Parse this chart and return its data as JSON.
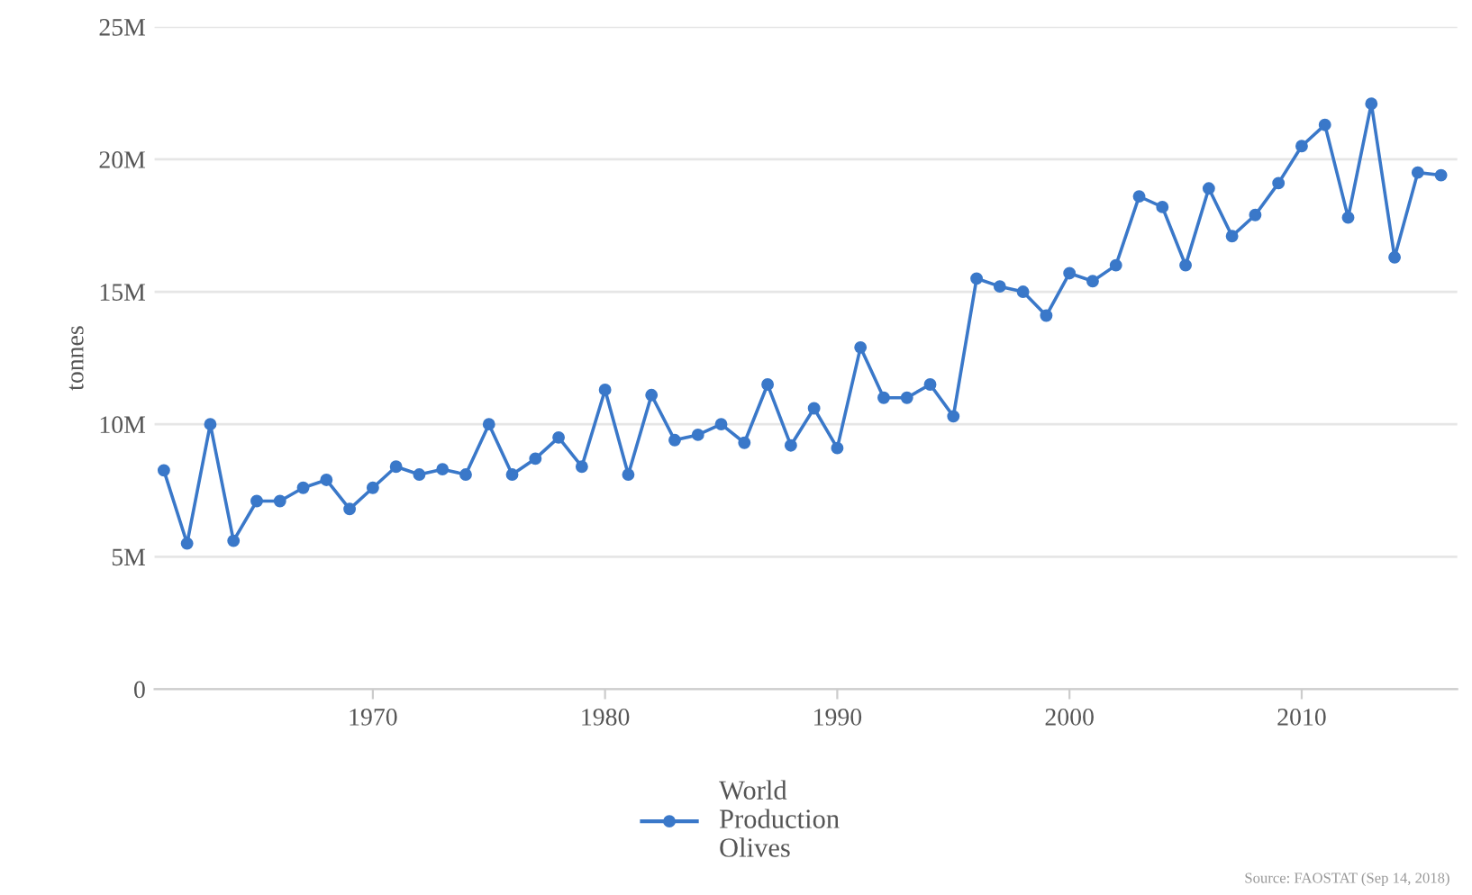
{
  "chart_data": {
    "type": "line",
    "ylabel": "tonnes",
    "x": [
      1961,
      1962,
      1963,
      1964,
      1965,
      1966,
      1967,
      1968,
      1969,
      1970,
      1971,
      1972,
      1973,
      1974,
      1975,
      1976,
      1977,
      1978,
      1979,
      1980,
      1981,
      1982,
      1983,
      1984,
      1985,
      1986,
      1987,
      1988,
      1989,
      1990,
      1991,
      1992,
      1993,
      1994,
      1995,
      1996,
      1997,
      1998,
      1999,
      2000,
      2001,
      2002,
      2003,
      2004,
      2005,
      2006,
      2007,
      2008,
      2009,
      2010,
      2011,
      2012,
      2013,
      2014,
      2015,
      2016
    ],
    "series": [
      {
        "name": "World\nProduction\nOlives",
        "color": "#3a78c9",
        "values": [
          8260000,
          5500000,
          10000000,
          5600000,
          7100000,
          7100000,
          7600000,
          7900000,
          6800000,
          7600000,
          8400000,
          8100000,
          8300000,
          8100000,
          10000000,
          8100000,
          8700000,
          9500000,
          8400000,
          11300000,
          8100000,
          11100000,
          9400000,
          9600000,
          10000000,
          9300000,
          11500000,
          9200000,
          10600000,
          9100000,
          12900000,
          11000000,
          11000000,
          11500000,
          10300000,
          15500000,
          15200000,
          15000000,
          14100000,
          15700000,
          15400000,
          16000000,
          18600000,
          18200000,
          16000000,
          18900000,
          17100000,
          17900000,
          19100000,
          20500000,
          21300000,
          17800000,
          22100000,
          16300000,
          19500000,
          19400000
        ]
      }
    ],
    "xlim": [
      1960.6,
      2016.7
    ],
    "xticks": [
      1970,
      1980,
      1990,
      2000,
      2010
    ],
    "ylim": [
      0,
      25000000
    ],
    "yticks": [
      {
        "value": 0,
        "label": "0"
      },
      {
        "value": 5000000,
        "label": "5M"
      },
      {
        "value": 10000000,
        "label": "10M"
      },
      {
        "value": 15000000,
        "label": "15M"
      },
      {
        "value": 20000000,
        "label": "20M"
      },
      {
        "value": 25000000,
        "label": "25M"
      }
    ],
    "grid": "y",
    "legend": "bottom",
    "marker": "circle",
    "line_style": "solid",
    "annotations": [
      "Source: FAOSTAT (Sep 14, 2018)"
    ]
  }
}
